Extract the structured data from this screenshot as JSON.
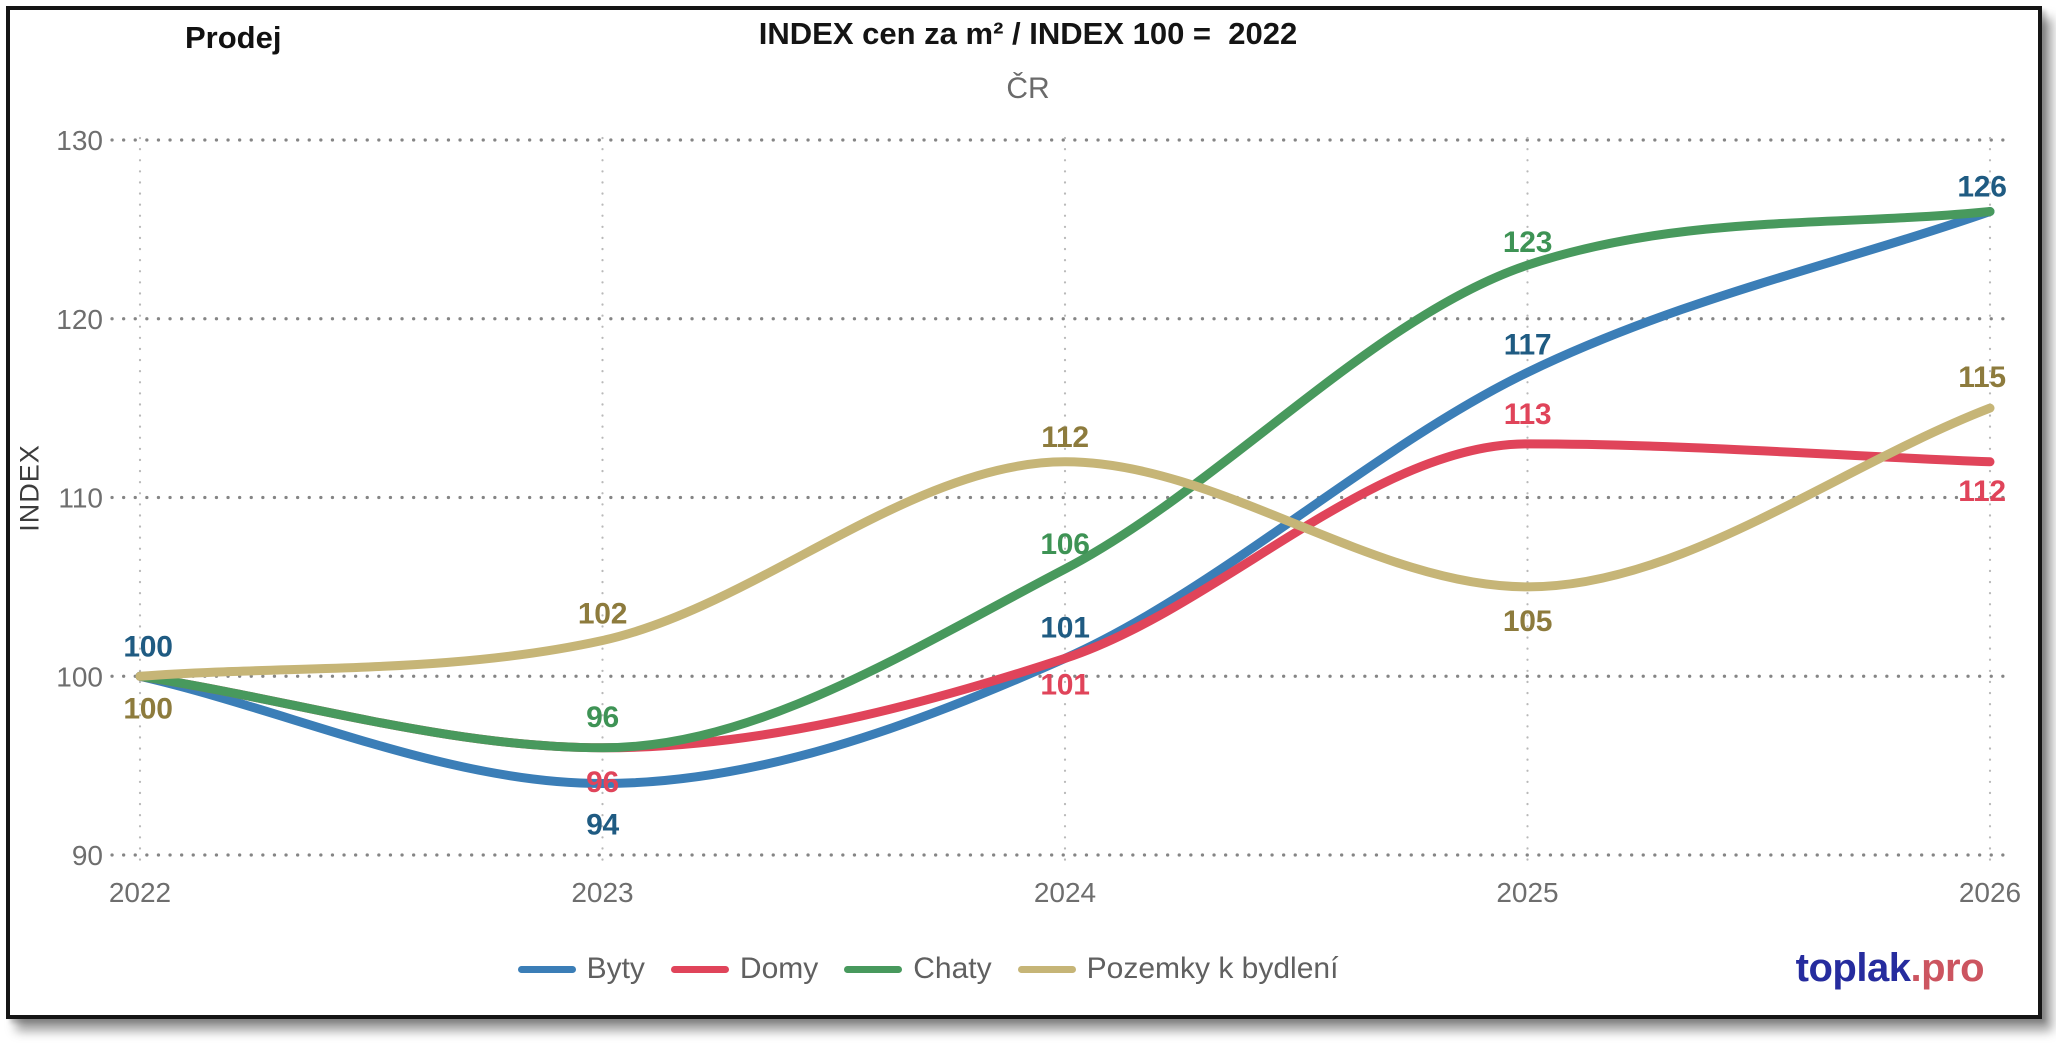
{
  "header": {
    "left_label": "Prodej",
    "title": "INDEX cen za m² / INDEX 100 =  2022",
    "subtitle": "ČR"
  },
  "chart_data": {
    "type": "line",
    "title": "INDEX cen za m² / INDEX 100 = 2022",
    "subtitle": "ČR",
    "xlabel": "",
    "ylabel": "INDEX",
    "categories": [
      "2022",
      "2023",
      "2024",
      "2025",
      "2026"
    ],
    "yticks": [
      90,
      100,
      110,
      120,
      130
    ],
    "ylim": [
      90,
      130
    ],
    "grid": "dotted",
    "legend_position": "bottom",
    "series": [
      {
        "name": "Byty",
        "color": "#3B7EB7",
        "label_color": "#1F5B82",
        "values": [
          100,
          94,
          101,
          117,
          126
        ],
        "labels": [
          100,
          94,
          101,
          117,
          126
        ],
        "label_dy": [
          -31,
          40,
          -32,
          -29,
          -26
        ]
      },
      {
        "name": "Domy",
        "color": "#E0445A",
        "label_color": "#E0445A",
        "values": [
          100,
          96,
          101,
          113,
          112
        ],
        "labels": [
          null,
          96,
          101,
          113,
          112
        ],
        "label_dy": [
          0,
          33,
          25,
          -31,
          28
        ]
      },
      {
        "name": "Chaty",
        "color": "#48995D",
        "label_color": "#3E9355",
        "values": [
          100,
          96,
          106,
          123,
          126
        ],
        "labels": [
          null,
          96,
          106,
          123,
          null
        ],
        "label_dy": [
          0,
          -32,
          -26,
          -24,
          0
        ]
      },
      {
        "name": "Pozemky k bydlení",
        "color": "#C6B577",
        "label_color": "#8D7B3D",
        "values": [
          100,
          102,
          112,
          105,
          115
        ],
        "labels": [
          100,
          102,
          112,
          105,
          115
        ],
        "label_dy": [
          31,
          -28,
          -26,
          33,
          -32
        ]
      }
    ],
    "gridline_color": "#858585",
    "vertical_gridline_color": "#b9b9b9"
  },
  "footer": {
    "logo_primary": "toplak",
    "logo_suffix": ".pro",
    "logo_primary_color": "#262C9E",
    "logo_suffix_color": "#CC5560"
  }
}
